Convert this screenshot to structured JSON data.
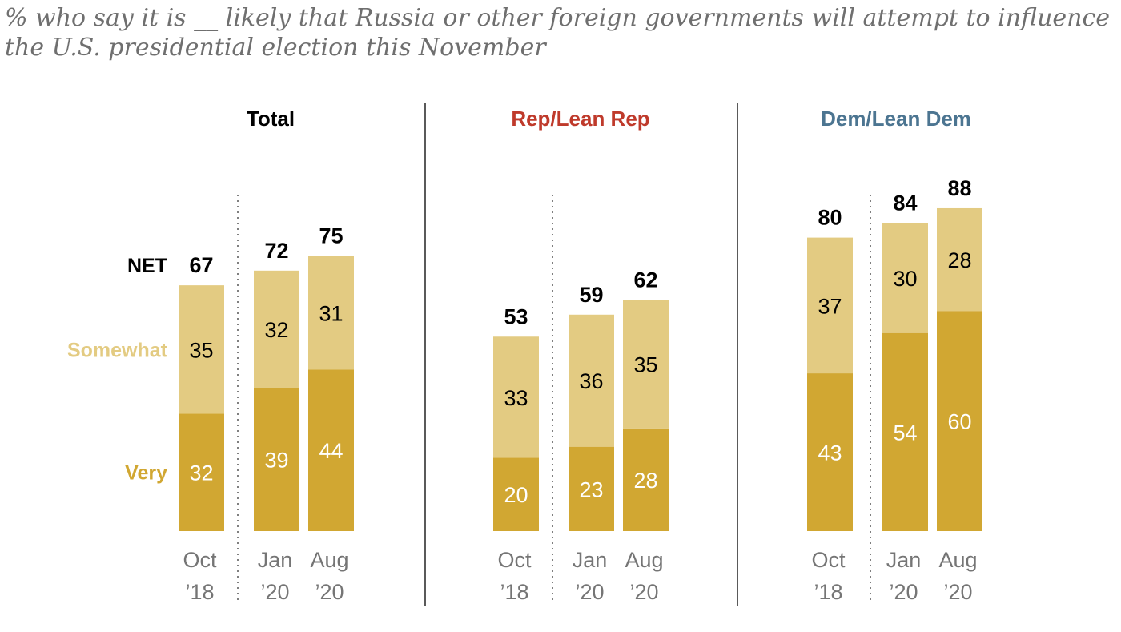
{
  "subtitle": {
    "line1": "% who say it is __ likely that Russia or other foreign governments will attempt to influence",
    "line2": "the U.S. presidential election this November"
  },
  "legend": {
    "net": "NET",
    "somewhat": "Somewhat",
    "very": "Very"
  },
  "colors": {
    "very": "#d1a732",
    "somewhat": "#e3cb82",
    "rep": "#bf3a2b",
    "dem": "#4c7591",
    "text": "#000000",
    "axis_text": "#757575",
    "divider": "#000000",
    "dotted": "#7f7f7f"
  },
  "chart_data": [
    {
      "type": "bar",
      "stacked": true,
      "title": "Total",
      "categories": [
        [
          "Oct",
          "’18"
        ],
        [
          "Jan",
          "’20"
        ],
        [
          "Aug",
          "’20"
        ]
      ],
      "series": [
        {
          "name": "Very",
          "values": [
            32,
            39,
            44
          ]
        },
        {
          "name": "Somewhat",
          "values": [
            35,
            32,
            31
          ]
        }
      ],
      "net": [
        67,
        72,
        75
      ]
    },
    {
      "type": "bar",
      "stacked": true,
      "title": "Rep/Lean Rep",
      "categories": [
        [
          "Oct",
          "’18"
        ],
        [
          "Jan",
          "’20"
        ],
        [
          "Aug",
          "’20"
        ]
      ],
      "series": [
        {
          "name": "Very",
          "values": [
            20,
            23,
            28
          ]
        },
        {
          "name": "Somewhat",
          "values": [
            33,
            36,
            35
          ]
        }
      ],
      "net": [
        53,
        59,
        62
      ]
    },
    {
      "type": "bar",
      "stacked": true,
      "title": "Dem/Lean Dem",
      "categories": [
        [
          "Oct",
          "’18"
        ],
        [
          "Jan",
          "’20"
        ],
        [
          "Aug",
          "’20"
        ]
      ],
      "series": [
        {
          "name": "Very",
          "values": [
            43,
            54,
            60
          ]
        },
        {
          "name": "Somewhat",
          "values": [
            37,
            30,
            28
          ]
        }
      ],
      "net": [
        80,
        84,
        88
      ]
    }
  ]
}
